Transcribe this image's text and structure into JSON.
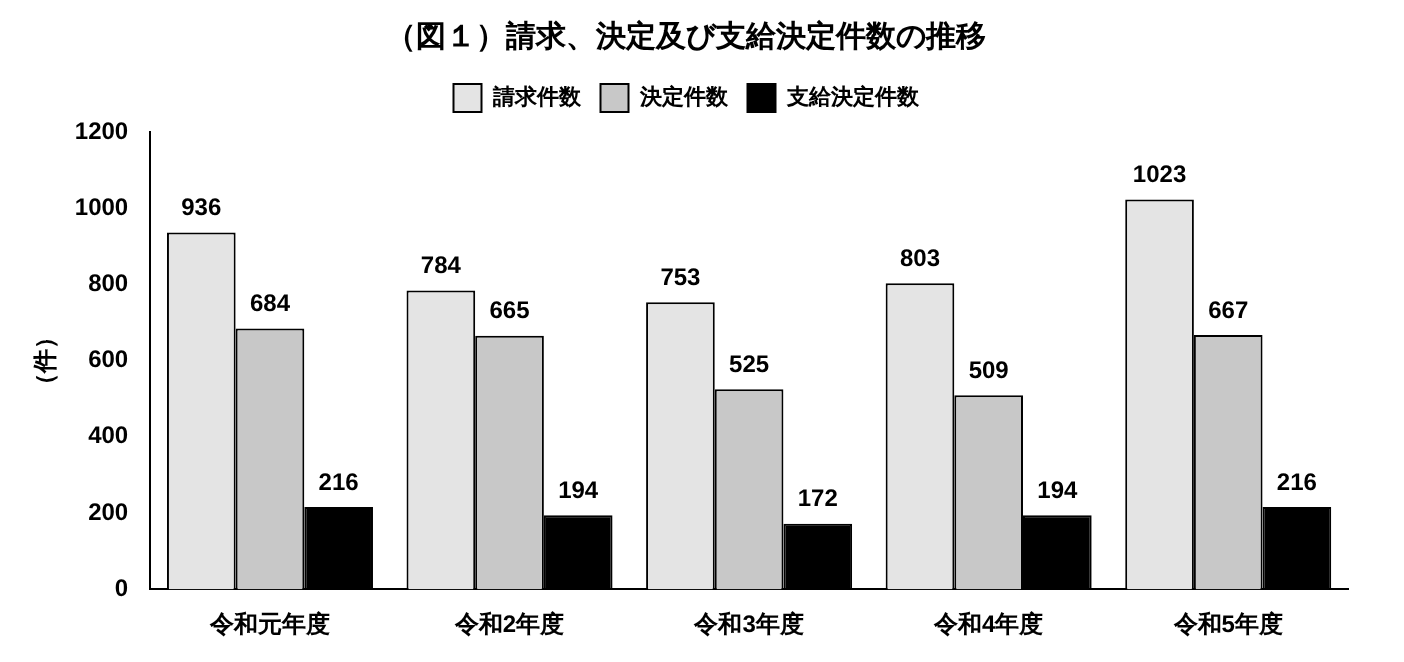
{
  "chart_data": {
    "type": "bar",
    "title": "（図１）請求、決定及び支給決定件数の推移",
    "ylabel": "（件）",
    "categories": [
      "令和元年度",
      "令和2年度",
      "令和3年度",
      "令和4年度",
      "令和5年度"
    ],
    "series": [
      {
        "name": "請求件数",
        "color": "#e4e4e4",
        "values": [
          936,
          784,
          753,
          803,
          1023
        ]
      },
      {
        "name": "決定件数",
        "color": "#c8c8c8",
        "values": [
          684,
          665,
          525,
          509,
          667
        ]
      },
      {
        "name": "支給決定件数",
        "color": "#000000",
        "values": [
          216,
          194,
          172,
          194,
          216
        ]
      }
    ],
    "ylim": [
      0,
      1200
    ],
    "yticks": [
      0,
      200,
      400,
      600,
      800,
      1000,
      1200
    ],
    "grid": false,
    "legend": "top",
    "data_labels": true
  }
}
